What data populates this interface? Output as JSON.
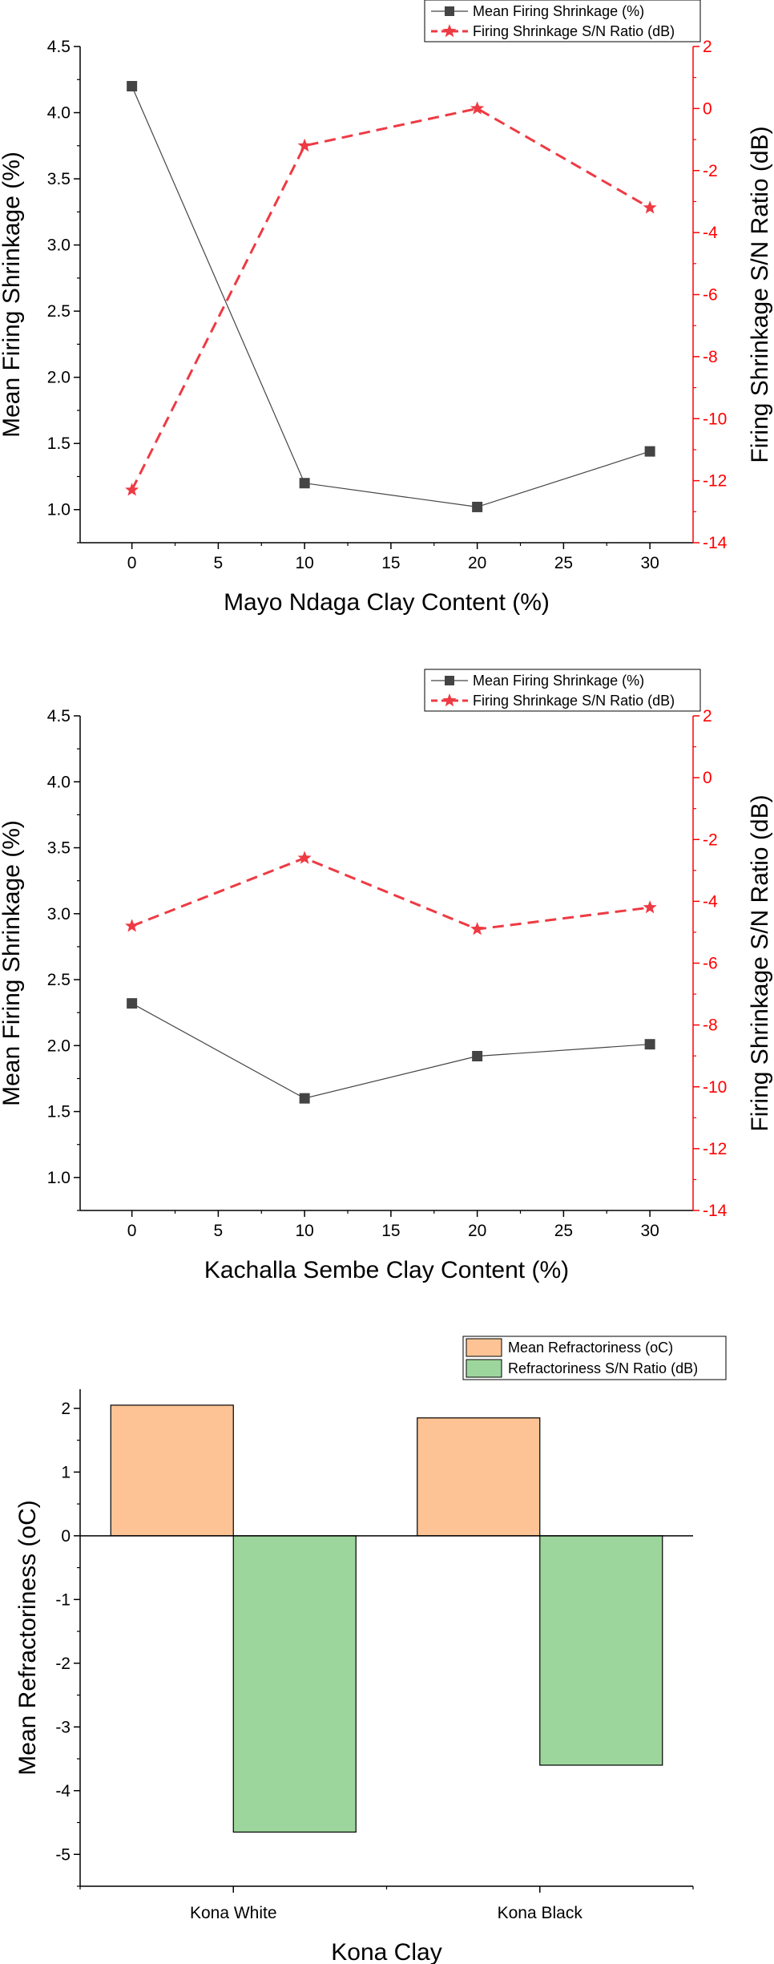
{
  "chart_data": [
    {
      "type": "line",
      "x": [
        0,
        10,
        20,
        30
      ],
      "xlabel": "Mayo Ndaga Clay Content (%)",
      "ylabel": "Mean Firing Shrinkage (%)",
      "y2label": "Firing Shrinkage S/N Ratio (dB)",
      "xlim": [
        -3,
        32.5
      ],
      "ylim": [
        0.75,
        4.5
      ],
      "y2lim": [
        -14,
        2
      ],
      "xticks": [
        0,
        5,
        10,
        15,
        20,
        25,
        30
      ],
      "yticks": [
        1.0,
        1.5,
        2.0,
        2.5,
        3.0,
        3.5,
        4.0,
        4.5
      ],
      "y2ticks": [
        -14,
        -12,
        -10,
        -8,
        -6,
        -4,
        -2,
        0,
        2
      ],
      "legend_position": "top-right",
      "series": [
        {
          "name": "Mean Firing Shrinkage (%)",
          "axis": "left",
          "color": "#444444",
          "style": "solid",
          "marker": "square",
          "values": [
            4.2,
            1.2,
            1.02,
            1.44
          ]
        },
        {
          "name": "Firing Shrinkage S/N Ratio (dB)",
          "axis": "right",
          "color": "#ee3a43",
          "style": "dashed",
          "marker": "star",
          "values": [
            -12.3,
            -1.2,
            0.0,
            -3.2
          ]
        }
      ]
    },
    {
      "type": "line",
      "x": [
        0,
        10,
        20,
        30
      ],
      "xlabel": "Kachalla Sembe Clay Content (%)",
      "ylabel": "Mean Firing Shrinkage (%)",
      "y2label": "Firing Shrinkage S/N Ratio (dB)",
      "xlim": [
        -3,
        32.5
      ],
      "ylim": [
        0.75,
        4.5
      ],
      "y2lim": [
        -14,
        2
      ],
      "xticks": [
        0,
        5,
        10,
        15,
        20,
        25,
        30
      ],
      "yticks": [
        1.0,
        1.5,
        2.0,
        2.5,
        3.0,
        3.5,
        4.0,
        4.5
      ],
      "y2ticks": [
        -14,
        -12,
        -10,
        -8,
        -6,
        -4,
        -2,
        0,
        2
      ],
      "legend_position": "top-right",
      "series": [
        {
          "name": "Mean Firing Shrinkage (%)",
          "axis": "left",
          "color": "#444444",
          "style": "solid",
          "marker": "square",
          "values": [
            2.32,
            1.6,
            1.92,
            2.01
          ]
        },
        {
          "name": "Firing Shrinkage S/N Ratio (dB)",
          "axis": "right",
          "color": "#ee3a43",
          "style": "dashed",
          "marker": "star",
          "values": [
            -4.8,
            -2.6,
            -4.9,
            -4.2
          ]
        }
      ]
    },
    {
      "type": "bar",
      "categories": [
        "Kona White",
        "Kona Black"
      ],
      "xlabel": "Kona Clay",
      "ylabel": "Mean Refractoriness (oC)",
      "ylim": [
        -5.5,
        2.3
      ],
      "yticks": [
        -5,
        -4,
        -3,
        -2,
        -1,
        0,
        1,
        2
      ],
      "legend_position": "top-right",
      "series": [
        {
          "name": "Mean Refractoriness (oC)",
          "color": "#fdc394",
          "values": [
            2.05,
            1.85
          ]
        },
        {
          "name": "Refractoriness S/N Ratio (dB)",
          "color": "#9dd69c",
          "values": [
            -4.65,
            -3.6
          ]
        }
      ]
    }
  ]
}
